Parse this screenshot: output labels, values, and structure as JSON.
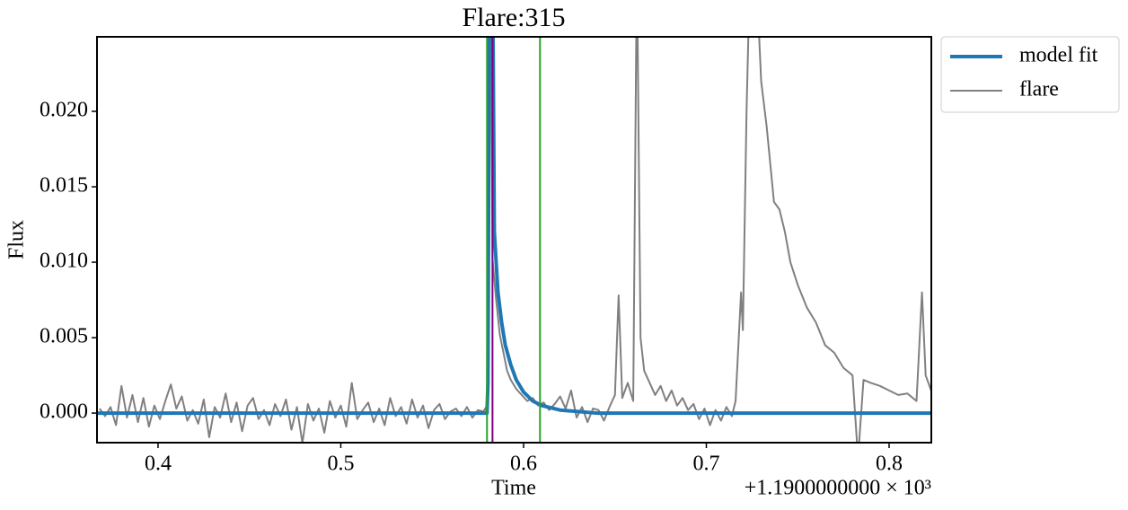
{
  "chart_data": {
    "type": "line",
    "title": "Flare:315",
    "xlabel": "Time",
    "ylabel": "Flux",
    "x_offset": "+1.1900000000 × 10³",
    "xlim": [
      0.3666,
      0.8231
    ],
    "ylim": [
      -0.00196,
      0.02494
    ],
    "xticks": [
      0.4,
      0.5,
      0.6,
      0.7,
      0.8
    ],
    "yticks": [
      {
        "value": 0,
        "label": "0.000"
      },
      {
        "value": 0.005,
        "label": "0.005"
      },
      {
        "value": 0.01,
        "label": "0.010"
      },
      {
        "value": 0.015,
        "label": "0.015"
      },
      {
        "value": 0.02,
        "label": "0.020"
      }
    ],
    "legend": "outside upper right",
    "vlines": [
      {
        "x": 0.58,
        "color": "#2ca02c"
      },
      {
        "x": 0.609,
        "color": "#2ca02c"
      },
      {
        "x": 0.583,
        "color": "#800080"
      }
    ],
    "series": [
      {
        "name": "model fit",
        "color": "#1f77b4",
        "width": 4,
        "x": [
          0.3666,
          0.58,
          0.5805,
          0.582,
          0.584,
          0.586,
          0.588,
          0.59,
          0.593,
          0.596,
          0.6,
          0.605,
          0.61,
          0.62,
          0.63,
          0.64,
          0.8231
        ],
        "values": [
          0,
          0,
          0.002,
          0.05,
          0.012,
          0.008,
          0.006,
          0.0045,
          0.0032,
          0.0022,
          0.0014,
          0.0008,
          0.0005,
          0.0002,
          0.0001,
          0,
          0
        ]
      },
      {
        "name": "flare",
        "color": "#808080",
        "width": 2,
        "x": [
          0.368,
          0.371,
          0.374,
          0.377,
          0.38,
          0.383,
          0.386,
          0.389,
          0.392,
          0.395,
          0.398,
          0.401,
          0.404,
          0.407,
          0.41,
          0.413,
          0.416,
          0.419,
          0.422,
          0.425,
          0.428,
          0.431,
          0.434,
          0.437,
          0.44,
          0.443,
          0.446,
          0.449,
          0.452,
          0.455,
          0.458,
          0.461,
          0.464,
          0.467,
          0.47,
          0.473,
          0.476,
          0.479,
          0.482,
          0.485,
          0.488,
          0.491,
          0.494,
          0.497,
          0.5,
          0.503,
          0.506,
          0.509,
          0.512,
          0.515,
          0.518,
          0.521,
          0.524,
          0.527,
          0.53,
          0.533,
          0.536,
          0.539,
          0.542,
          0.545,
          0.548,
          0.551,
          0.554,
          0.557,
          0.56,
          0.563,
          0.566,
          0.569,
          0.572,
          0.575,
          0.578,
          0.58,
          0.581,
          0.582,
          0.583,
          0.585,
          0.587,
          0.589,
          0.591,
          0.593,
          0.596,
          0.599,
          0.602,
          0.605,
          0.608,
          0.611,
          0.614,
          0.617,
          0.62,
          0.623,
          0.626,
          0.629,
          0.632,
          0.635,
          0.638,
          0.641,
          0.644,
          0.647,
          0.65,
          0.652,
          0.654,
          0.657,
          0.66,
          0.662,
          0.664,
          0.666,
          0.669,
          0.672,
          0.675,
          0.678,
          0.681,
          0.684,
          0.687,
          0.69,
          0.693,
          0.696,
          0.699,
          0.702,
          0.705,
          0.708,
          0.711,
          0.714,
          0.716,
          0.719,
          0.72,
          0.722,
          0.724,
          0.727,
          0.73,
          0.733,
          0.735,
          0.737,
          0.74,
          0.743,
          0.746,
          0.75,
          0.755,
          0.76,
          0.765,
          0.77,
          0.775,
          0.78,
          0.783,
          0.786,
          0.79,
          0.795,
          0.8,
          0.805,
          0.81,
          0.815,
          0.818,
          0.82,
          0.823
        ],
        "values": [
          0.0003,
          -0.0002,
          0.0004,
          -0.0008,
          0.0018,
          -0.0003,
          0.0012,
          -0.0006,
          0.001,
          -0.0009,
          0.0005,
          -0.0004,
          0.0008,
          0.0019,
          0.0003,
          0.0011,
          -0.0005,
          0.0002,
          -0.0007,
          0.0009,
          -0.0016,
          0.0004,
          -0.0003,
          0.0013,
          -0.0006,
          0.0007,
          -0.0012,
          0.0005,
          0.001,
          -0.0004,
          0.0002,
          -0.0008,
          0.0006,
          -0.0002,
          0.0009,
          -0.0011,
          0.0004,
          -0.002,
          0.0006,
          -0.0005,
          0.0003,
          -0.0013,
          0.0008,
          -0.0003,
          0.0005,
          -0.0009,
          0.002,
          -0.0004,
          0.0002,
          0.0007,
          -0.0006,
          0.0003,
          -0.0008,
          0.001,
          -0.0002,
          0.0004,
          -0.0007,
          0.0009,
          -0.0003,
          0.0005,
          -0.001,
          0.0002,
          0.0006,
          -0.0004,
          0.0001,
          0.0003,
          -0.0002,
          0.0004,
          -0.0003,
          0.0002,
          0.0001,
          0.0005,
          0.015,
          0.03,
          0.0102,
          0.0075,
          0.0052,
          0.004,
          0.0028,
          0.0022,
          0.0016,
          0.0012,
          0.0008,
          0.001,
          0.0005,
          0.0007,
          0.0002,
          0.0006,
          0.0011,
          0.0003,
          0.0015,
          -0.0003,
          0.0004,
          -0.0006,
          0.0003,
          0.0002,
          -0.0005,
          0.0004,
          0.0012,
          0.0078,
          0.001,
          0.002,
          0.0008,
          0.03,
          0.005,
          0.0028,
          0.002,
          0.0012,
          0.0018,
          0.0008,
          0.0015,
          0.0005,
          0.001,
          0.0002,
          0.0006,
          -0.0004,
          0.0003,
          -0.0008,
          0.0002,
          -0.0005,
          0.0004,
          -0.0002,
          0.0008,
          0.008,
          0.0055,
          0.02,
          0.03,
          0.03,
          0.022,
          0.019,
          0.0165,
          0.014,
          0.0135,
          0.012,
          0.01,
          0.0085,
          0.007,
          0.006,
          0.0045,
          0.004,
          0.003,
          0.0025,
          -0.003,
          0.0022,
          0.002,
          0.0018,
          0.0015,
          0.0012,
          0.0013,
          0.0008,
          0.008,
          0.0025,
          0.0015
        ]
      }
    ]
  }
}
